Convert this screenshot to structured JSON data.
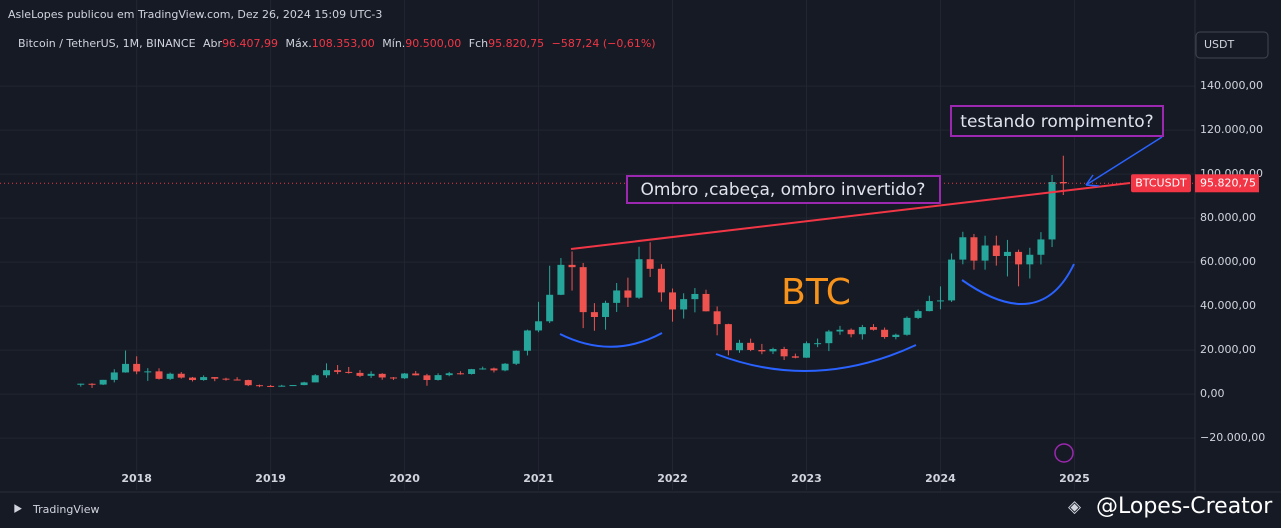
{
  "header": {
    "publisher": "AsleLopes publicou em TradingView.com, Dez 26, 2024 15:09 UTC-3",
    "symbol": "Bitcoin / TetherUS, 1M, BINANCE",
    "open_label": "Abr",
    "open": "96.407,99",
    "high_label": "Máx.",
    "high": "108.353,00",
    "low_label": "Mín.",
    "low": "90.500,00",
    "close_label": "Fch",
    "close": "95.820,75",
    "change": "−587,24 (−0,61%)"
  },
  "footer": {
    "brand": "TradingView",
    "author": "@Lopes-Creator"
  },
  "chart_data": {
    "type": "candlestick",
    "currency": "USDT",
    "up_color": "#26a69a",
    "down_color": "#ef5350",
    "grid": true,
    "price_tag": {
      "symbol": "BTCUSDT",
      "label": "95.820,75",
      "value": 95820.75,
      "color": "#f23645"
    },
    "annotations": [
      "testando rompimento?",
      "Ombro ,cabeça, ombro invertido?",
      "BTC"
    ],
    "xlim": [
      2016.98,
      2025.9
    ],
    "xticks": [
      2018,
      2019,
      2020,
      2021,
      2022,
      2023,
      2024,
      2025
    ],
    "ylim": [
      -43600,
      165500
    ],
    "yticks": [
      {
        "value": -20000,
        "label": "−20.000,00"
      },
      {
        "value": 0,
        "label": "0,00"
      },
      {
        "value": 20000,
        "label": "20.000,00"
      },
      {
        "value": 40000,
        "label": "40.000,00"
      },
      {
        "value": 60000,
        "label": "60.000,00"
      },
      {
        "value": 80000,
        "label": "80.000,00"
      },
      {
        "value": 100000,
        "label": "100.000,00"
      },
      {
        "value": 120000,
        "label": "120.000,00"
      },
      {
        "value": 140000,
        "label": "140.000,00"
      }
    ],
    "x": [
      2017.583,
      2017.667,
      2017.75,
      2017.833,
      2017.917,
      2018.0,
      2018.083,
      2018.167,
      2018.25,
      2018.333,
      2018.417,
      2018.5,
      2018.583,
      2018.667,
      2018.75,
      2018.833,
      2018.917,
      2019.0,
      2019.083,
      2019.167,
      2019.25,
      2019.333,
      2019.417,
      2019.5,
      2019.583,
      2019.667,
      2019.75,
      2019.833,
      2019.917,
      2020.0,
      2020.083,
      2020.167,
      2020.25,
      2020.333,
      2020.417,
      2020.5,
      2020.583,
      2020.667,
      2020.75,
      2020.833,
      2020.917,
      2021.0,
      2021.083,
      2021.167,
      2021.25,
      2021.333,
      2021.417,
      2021.5,
      2021.583,
      2021.667,
      2021.75,
      2021.833,
      2021.917,
      2022.0,
      2022.083,
      2022.167,
      2022.25,
      2022.333,
      2022.417,
      2022.5,
      2022.583,
      2022.667,
      2022.75,
      2022.833,
      2022.917,
      2023.0,
      2023.083,
      2023.167,
      2023.25,
      2023.333,
      2023.417,
      2023.5,
      2023.583,
      2023.667,
      2023.75,
      2023.833,
      2023.917,
      2024.0,
      2024.083,
      2024.167,
      2024.25,
      2024.333,
      2024.417,
      2024.5,
      2024.583,
      2024.667,
      2024.75,
      2024.833,
      2024.917
    ],
    "open": [
      4261,
      4690,
      4339,
      6463,
      9838,
      13716,
      10285,
      10326,
      6923,
      9246,
      7494,
      6391,
      7730,
      7011,
      6626,
      6371,
      4041,
      3702,
      3434,
      3814,
      4103,
      5321,
      8555,
      10855,
      10085,
      9630,
      8293,
      9199,
      7546,
      7195,
      9352,
      8523,
      6410,
      8620,
      9448,
      9138,
      11335,
      11649,
      10776,
      13791,
      19695,
      28923,
      33092,
      45135,
      58740,
      57697,
      37253,
      35045,
      41461,
      47100,
      43820,
      61299,
      56950,
      46216,
      38466,
      43160,
      45510,
      37631,
      31801,
      19942,
      23296,
      20048,
      19423,
      20491,
      17165,
      16541,
      23125,
      23141,
      28465,
      29233,
      27210,
      30471,
      29232,
      25940,
      26962,
      34639,
      37723,
      42283,
      42580,
      61130,
      71280,
      60672,
      67540,
      62772,
      64628,
      58974,
      63327,
      70292,
      96407.99
    ],
    "high": [
      4745,
      4939,
      6470,
      11300,
      19798,
      17176,
      11786,
      11710,
      9759,
      10020,
      7786,
      8507,
      7750,
      7410,
      7680,
      6540,
      4312,
      4143,
      4199,
      4140,
      5600,
      9074,
      13970,
      13200,
      12325,
      10905,
      10370,
      9508,
      7750,
      9578,
      10500,
      9188,
      9468,
      10067,
      10380,
      11444,
      12468,
      12050,
      14100,
      19863,
      29300,
      41950,
      58352,
      61844,
      64854,
      59600,
      41330,
      42448,
      50500,
      52920,
      67000,
      69000,
      59053,
      47990,
      45821,
      48190,
      47444,
      39845,
      31982,
      24668,
      25211,
      22799,
      21085,
      21480,
      18388,
      23960,
      25250,
      29184,
      31000,
      29820,
      31431,
      31804,
      30244,
      27483,
      35280,
      38450,
      44700,
      48969,
      63913,
      73777,
      72797,
      71979,
      71997,
      70079,
      65660,
      66498,
      73620,
      99588,
      108353
    ],
    "low": [
      3400,
      2817,
      4110,
      5325,
      9722,
      9035,
      6000,
      6600,
      6430,
      7032,
      5750,
      6070,
      5880,
      6100,
      6200,
      3652,
      3156,
      3349,
      3400,
      3670,
      4030,
      5321,
      7440,
      9070,
      9320,
      7710,
      7300,
      6515,
      6435,
      6871,
      8450,
      3782,
      6150,
      8117,
      8833,
      8893,
      11100,
      9825,
      10374,
      13195,
      17572,
      28130,
      32296,
      45000,
      47044,
      30000,
      28805,
      29278,
      37332,
      39600,
      43283,
      53256,
      42000,
      32917,
      34322,
      37155,
      37578,
      26700,
      17622,
      18781,
      19520,
      18125,
      18190,
      15476,
      16256,
      16499,
      21351,
      19549,
      26942,
      25811,
      24800,
      28861,
      25166,
      24901,
      26538,
      34097,
      37617,
      38555,
      41884,
      59005,
      56552,
      56555,
      58402,
      53485,
      49000,
      52550,
      58946,
      66835,
      90500
    ],
    "close": [
      4724,
      4339,
      6468,
      9838,
      13716,
      10285,
      10327,
      6924,
      9246,
      7494,
      6391,
      7730,
      7011,
      6626,
      6371,
      4041,
      3702,
      3434,
      3814,
      4103,
      5321,
      8555,
      10855,
      10085,
      9630,
      8293,
      9199,
      7546,
      7195,
      9352,
      8523,
      6410,
      8620,
      9448,
      9138,
      11335,
      11649,
      10776,
      13791,
      19695,
      28923,
      33092,
      45135,
      58740,
      57694,
      37253,
      35045,
      41461,
      47100,
      43824,
      61299,
      56950,
      46216,
      38466,
      43160,
      45510,
      37630,
      31801,
      19942,
      23293,
      20050,
      19422,
      20491,
      17164,
      16542,
      23125,
      23141,
      28465,
      29233,
      27210,
      30472,
      29232,
      25940,
      26962,
      34639,
      37723,
      42283,
      42580,
      61130,
      71280,
      60672,
      67540,
      62772,
      64628,
      58974,
      63327,
      70292,
      96407.99,
      95820.75
    ]
  }
}
